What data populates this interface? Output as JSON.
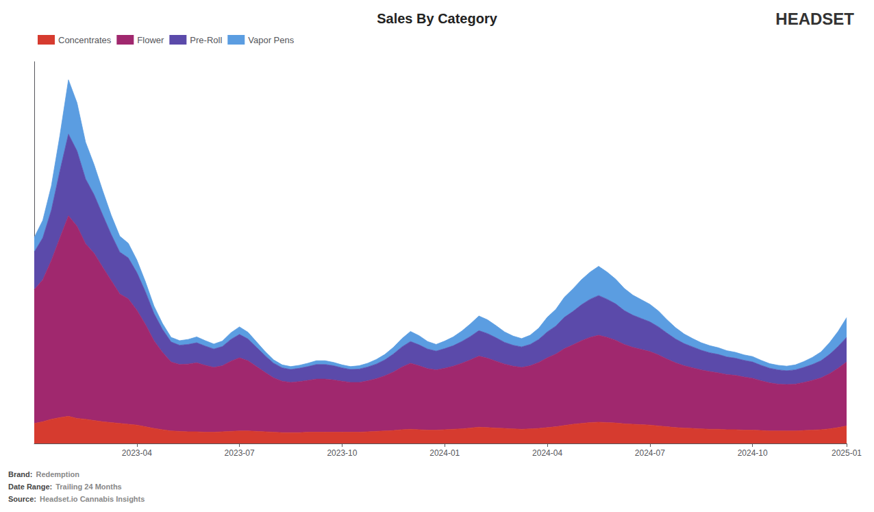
{
  "chart_data": {
    "type": "area",
    "title": "Sales By Category",
    "stacked": true,
    "grid": false,
    "legend": "upper left",
    "tick_labels": "x",
    "ylim": [
      0,
      913.5
    ],
    "annotations": [
      {
        "label": "Brand:",
        "text": "Redemption"
      },
      {
        "label": "Date Range:",
        "text": "Trailing 24 Months"
      },
      {
        "label": "Source:",
        "text": "Headset.io Cannabis Insights"
      },
      {
        "text": "HEADSET"
      }
    ],
    "categories": [
      null,
      null,
      null,
      null,
      null,
      null,
      null,
      null,
      null,
      null,
      null,
      null,
      "2023-04",
      null,
      null,
      null,
      null,
      null,
      null,
      null,
      null,
      null,
      null,
      null,
      "2023-07",
      null,
      null,
      null,
      null,
      null,
      null,
      null,
      null,
      null,
      null,
      null,
      "2023-10",
      null,
      null,
      null,
      null,
      null,
      null,
      null,
      null,
      null,
      null,
      null,
      "2024-01",
      null,
      null,
      null,
      null,
      null,
      null,
      null,
      null,
      null,
      null,
      null,
      "2024-04",
      null,
      null,
      null,
      null,
      null,
      null,
      null,
      null,
      null,
      null,
      null,
      "2024-07",
      null,
      null,
      null,
      null,
      null,
      null,
      null,
      null,
      null,
      null,
      null,
      "2024-10",
      null,
      null,
      null,
      null,
      null,
      null,
      null,
      null,
      null,
      null,
      "2025-01"
    ],
    "series": [
      {
        "name": "Concentrates",
        "color": "#d63b2f",
        "values": [
          48,
          52,
          58,
          62,
          65,
          60,
          58,
          55,
          52,
          50,
          48,
          46,
          44,
          40,
          36,
          33,
          30,
          29,
          28,
          28,
          27,
          27,
          28,
          29,
          30,
          30,
          29,
          28,
          27,
          26,
          26,
          26,
          27,
          27,
          27,
          27,
          27,
          27,
          27,
          28,
          29,
          30,
          31,
          33,
          34,
          33,
          32,
          32,
          33,
          34,
          35,
          37,
          39,
          38,
          37,
          36,
          35,
          34,
          35,
          36,
          38,
          40,
          43,
          46,
          48,
          50,
          51,
          50,
          49,
          47,
          46,
          45,
          44,
          42,
          40,
          38,
          37,
          36,
          35,
          34,
          34,
          33,
          33,
          32,
          32,
          31,
          30,
          30,
          30,
          30,
          31,
          32,
          33,
          35,
          38,
          42
        ]
      },
      {
        "name": "Flower",
        "color": "#a0286e",
        "values": [
          320,
          340,
          380,
          430,
          480,
          460,
          420,
          400,
          370,
          340,
          310,
          300,
          275,
          245,
          210,
          185,
          165,
          160,
          162,
          165,
          160,
          155,
          158,
          168,
          175,
          168,
          155,
          142,
          130,
          123,
          120,
          122,
          124,
          127,
          127,
          125,
          122,
          119,
          119,
          122,
          126,
          132,
          140,
          150,
          158,
          153,
          147,
          144,
          147,
          151,
          157,
          163,
          170,
          166,
          160,
          154,
          150,
          148,
          151,
          158,
          167,
          174,
          184,
          190,
          198,
          204,
          208,
          204,
          198,
          190,
          184,
          180,
          176,
          170,
          162,
          155,
          149,
          145,
          141,
          138,
          135,
          132,
          130,
          127,
          124,
          119,
          115,
          112,
          111,
          112,
          115,
          119,
          124,
          132,
          142,
          153
        ]
      },
      {
        "name": "Pre-Roll",
        "color": "#5b4aaa",
        "values": [
          90,
          100,
          120,
          160,
          195,
          180,
          155,
          140,
          125,
          110,
          100,
          98,
          90,
          78,
          65,
          55,
          48,
          46,
          47,
          48,
          46,
          44,
          46,
          52,
          56,
          52,
          46,
          40,
          35,
          32,
          31,
          32,
          33,
          35,
          35,
          34,
          32,
          31,
          32,
          33,
          35,
          38,
          43,
          48,
          52,
          50,
          47,
          45,
          47,
          49,
          52,
          56,
          61,
          59,
          56,
          52,
          50,
          49,
          51,
          55,
          62,
          67,
          75,
          80,
          86,
          91,
          95,
          91,
          87,
          81,
          77,
          74,
          71,
          67,
          62,
          57,
          53,
          50,
          47,
          45,
          44,
          42,
          41,
          40,
          39,
          37,
          35,
          34,
          33,
          34,
          36,
          38,
          41,
          46,
          52,
          59
        ]
      },
      {
        "name": "Vapor Pens",
        "color": "#5b9de1",
        "values": [
          35,
          42,
          58,
          85,
          130,
          115,
          88,
          72,
          58,
          46,
          38,
          35,
          30,
          24,
          18,
          14,
          11,
          11,
          12,
          14,
          13,
          12,
          13,
          16,
          18,
          16,
          13,
          10,
          8,
          7,
          7,
          7,
          8,
          9,
          9,
          8,
          7,
          7,
          8,
          9,
          11,
          13,
          16,
          20,
          24,
          22,
          18,
          16,
          18,
          21,
          25,
          30,
          35,
          33,
          29,
          25,
          22,
          20,
          22,
          27,
          35,
          40,
          48,
          54,
          60,
          65,
          70,
          65,
          59,
          53,
          48,
          45,
          42,
          38,
          32,
          27,
          23,
          20,
          18,
          17,
          16,
          15,
          14,
          13,
          13,
          12,
          11,
          11,
          11,
          12,
          14,
          17,
          21,
          28,
          36,
          47
        ]
      }
    ]
  }
}
